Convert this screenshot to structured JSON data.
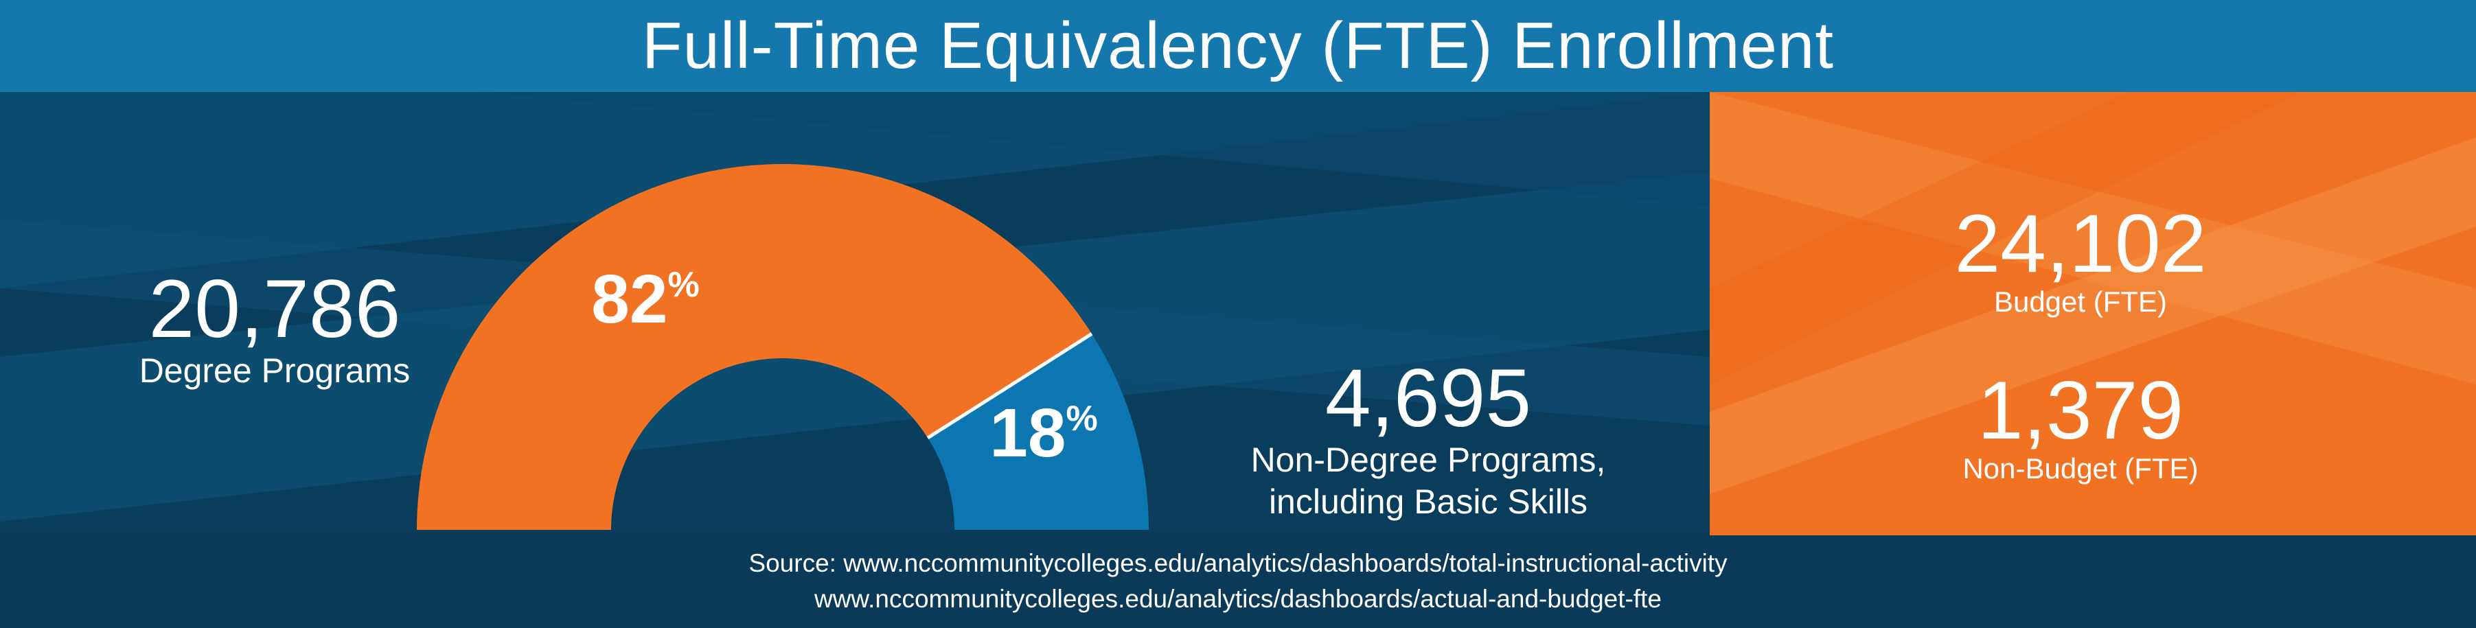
{
  "title": "Full-Time Equivalency (FTE) Enrollment",
  "colors": {
    "orange": "#f07222",
    "blue": "#0b76b0",
    "navy": "#0a3d5c",
    "header": "#1478ad"
  },
  "degree": {
    "value": "20,786",
    "label": "Degree Programs"
  },
  "non_degree": {
    "value": "4,695",
    "label_line1": "Non-Degree Programs,",
    "label_line2": "including Basic Skills"
  },
  "budget": {
    "value": "24,102",
    "label": "Budget (FTE)"
  },
  "non_budget": {
    "value": "1,379",
    "label": "Non-Budget (FTE)"
  },
  "source": {
    "line1": "Source: www.nccommunitycolleges.edu/analytics/dashboards/total-instructional-activity",
    "line2": "www.nccommunitycolleges.edu/analytics/dashboards/actual-and-budget-fte"
  },
  "chart_data": {
    "type": "pie",
    "categories": [
      "Degree Programs",
      "Non-Degree Programs, including Basic Skills"
    ],
    "values": [
      82,
      18
    ],
    "labels": [
      "82%",
      "18%"
    ],
    "colors": [
      "#f07222",
      "#0b76b0"
    ]
  }
}
